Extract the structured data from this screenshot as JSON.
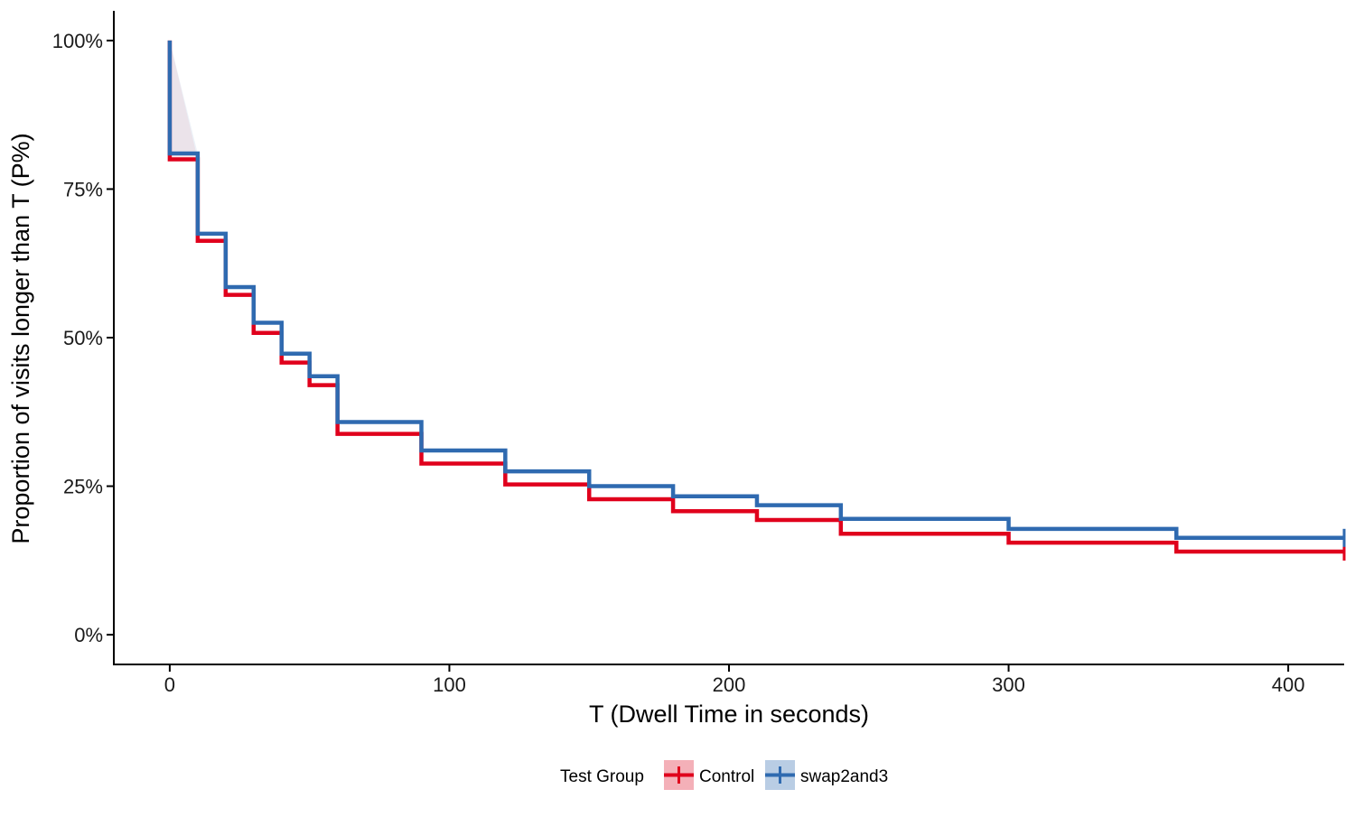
{
  "chart_data": {
    "type": "line",
    "subtype": "step",
    "title": "",
    "xlabel": "T (Dwell Time in seconds)",
    "ylabel": "Proportion of visits longer than T (P%)",
    "xlim": [
      -20,
      420
    ],
    "ylim": [
      -0.05,
      1.05
    ],
    "x_ticks": [
      0,
      100,
      200,
      300,
      400
    ],
    "x_tick_labels": [
      "0",
      "100",
      "200",
      "300",
      "400"
    ],
    "y_ticks": [
      0,
      0.25,
      0.5,
      0.75,
      1.0
    ],
    "y_tick_labels": [
      "0%",
      "25%",
      "50%",
      "75%",
      "100%"
    ],
    "grid": false,
    "legend": {
      "title": "Test Group",
      "position": "bottom",
      "entries": [
        "Control",
        "swap2and3"
      ]
    },
    "series": [
      {
        "name": "Control",
        "color": "#e0001c",
        "ribbon_color": "#f4b0b8",
        "x": [
          0,
          10,
          20,
          30,
          40,
          50,
          60,
          90,
          120,
          150,
          180,
          210,
          240,
          300,
          360,
          420
        ],
        "y": [
          0.8,
          0.663,
          0.572,
          0.508,
          0.458,
          0.42,
          0.338,
          0.288,
          0.253,
          0.228,
          0.208,
          0.193,
          0.17,
          0.155,
          0.14,
          0.14
        ]
      },
      {
        "name": "swap2and3",
        "color": "#2f6ab0",
        "ribbon_color": "#b9cde4",
        "x": [
          0,
          10,
          20,
          30,
          40,
          50,
          60,
          90,
          120,
          150,
          180,
          210,
          240,
          300,
          360,
          420
        ],
        "y": [
          0.81,
          0.675,
          0.585,
          0.525,
          0.473,
          0.435,
          0.358,
          0.31,
          0.275,
          0.25,
          0.233,
          0.218,
          0.195,
          0.178,
          0.163,
          0.163
        ]
      }
    ],
    "start": {
      "x": 0,
      "y": 1.0
    }
  }
}
